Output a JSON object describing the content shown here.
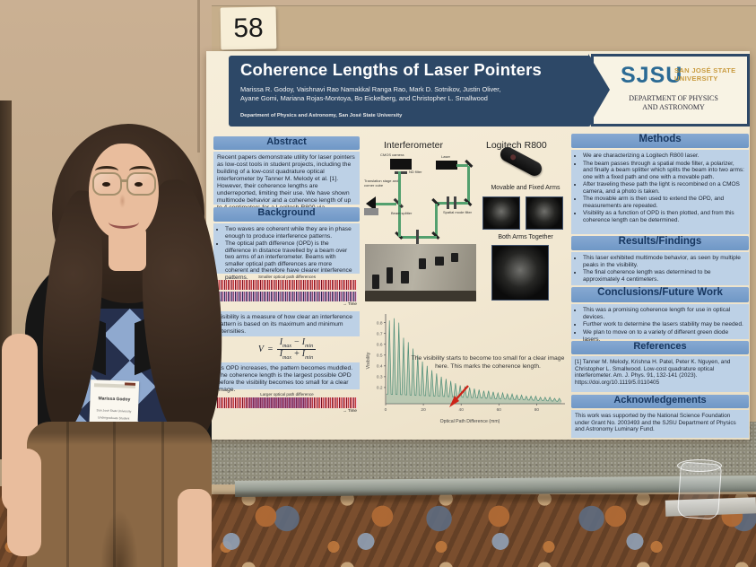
{
  "scene": {
    "poster_number": "58",
    "badge": {
      "name": "Marissa Godoy",
      "org": "San José State University",
      "role": "Undergraduate Student",
      "pronoun_label": "my pronouns are",
      "pronoun1": "she • her",
      "pronoun2": "they • them"
    }
  },
  "icons": {
    "time_arrow": "→"
  },
  "colors": {
    "header_navy": "#2d4867",
    "section_header_blue": "#7fa3cf",
    "section_body_blue": "#bdd1e6",
    "sjsu_blue": "#2b6a94",
    "sjsu_gold": "#c99b3f",
    "chart_teal": "#4e8d77",
    "arrow_red": "#cc2418",
    "lanyard_green": "#5fbf63",
    "poster_cream": "#f2e8d2"
  },
  "poster": {
    "title": "Coherence Lengths of Laser Pointers",
    "authors_line1": "Marissa R. Godoy, Vaishnavi Rao Namakkal Ranga Rao, Mark D. Sotnikov, Justin Oliver,",
    "authors_line2": "Ayane Gomi, Mariana Rojas-Montoya, Bo Eickelberg, and Christopher L. Smallwood",
    "affiliation": "Department of Physics and Astronomy, San José State University",
    "logo": {
      "acronym": "SJSU",
      "university1": "SAN JOSÉ STATE",
      "university2": "UNIVERSITY",
      "department1": "DEPARTMENT OF PHYSICS",
      "department2": "AND ASTRONOMY"
    },
    "formula": {
      "lhs": "V",
      "eq": "=",
      "num_i1": "I",
      "num_s1": "max",
      "num_op": "−",
      "num_i2": "I",
      "num_s2": "min",
      "den_i1": "I",
      "den_s1": "max",
      "den_op": "+",
      "den_i2": "I",
      "den_s2": "min"
    },
    "middle": {
      "interferometer_title": "Interferometer",
      "interferometer_labels": [
        "CMOS camera",
        "ND filter",
        "Laser",
        "Translation stage and corner cube",
        "Beam splitter",
        "Polarizer",
        "Spatial mode filter"
      ],
      "laser_title": "Logitech R800",
      "arms_label": "Movable and Fixed Arms",
      "both_label": "Both Arms Together",
      "annotation": "The visibility starts to become too small for a clear image here. This marks the coherence length."
    },
    "sections": {
      "abstract": {
        "heading": "Abstract",
        "body": "Recent papers demonstrate utility for laser pointers as low-cost tools in student projects, including the building of a low-cost quadrature optical interferometer by Tanner M. Melody et al. [1]. However, their coherence lengths are underreported, limiting their use. We have shown multimode behavior and a coherence length of up to 4 centimeters for a Logitech R800 via interferometry."
      },
      "background": {
        "heading": "Background",
        "bullets": [
          "Two waves are coherent while they are in phase enough to produce interference patterns.",
          "The optical path difference (OPD) is the difference in distance travelled by a beam over two arms of an interferometer. Beams with smaller optical path differences are more coherent and therefore have clearer interference patterns."
        ],
        "figure1_caption": "Smaller optical path differences",
        "figure2_caption": "Larger optical path difference",
        "time_label": "Time",
        "visibility_note": "Visibility is a measure of how clear an interference pattern is based on its maximum and minimum intensities.",
        "opd_note": "As OPD increases, the pattern becomes muddled. The coherence length is the largest possible OPD before the visibility becomes too small for a clear image."
      },
      "methods": {
        "heading": "Methods",
        "bullets": [
          "We are characterizing a Logitech R800 laser.",
          "The beam passes through a spatial mode filter, a polarizer, and finally a beam splitter which splits the beam into two arms: one with a fixed path and one with a movable path.",
          "After traveling these path the light is recombined on a CMOS camera, and a photo is taken.",
          "The movable arm is then used to extend the OPD, and measurements are repeated.",
          "Visibility as a function of OPD is then plotted, and from this coherence length can be determined."
        ]
      },
      "results": {
        "heading": "Results/Findings",
        "bullets": [
          "This laser exhibited multimode behavior, as seen by multiple peaks in the visibility.",
          "The final coherence length was determined to be approximately 4 centimeters."
        ]
      },
      "conclusions": {
        "heading": "Conclusions/Future Work",
        "bullets": [
          "This was a promising coherence length for use in optical devices.",
          "Further work to determine the lasers stability may be needed.",
          "We plan to move on to a variety of different green diode lasers."
        ]
      },
      "references": {
        "heading": "References",
        "body": "[1] Tanner M. Melody, Krishna H. Patel, Peter K. Nguyen, and Christopher L. Smallwood. Low-cost quadrature optical interferometer. Am. J. Phys. 91, 132-141 (2023). https://doi.org/10.1119/5.0110405"
      },
      "acknowledgements": {
        "heading": "Acknowledgements",
        "body": "This work was supported by the National Science Foundation under Grant No. 2003493 and the SJSU Department of Physics and Astronomy Luminary Fund."
      }
    }
  },
  "chart_data": {
    "type": "line",
    "title": "",
    "xlabel": "Optical Path Difference (mm)",
    "ylabel": "Visibility",
    "xlim": [
      0,
      95
    ],
    "ylim": [
      0.05,
      0.88
    ],
    "xticks": [
      0,
      20,
      40,
      60,
      80
    ],
    "yticks": [
      0.2,
      0.3,
      0.4,
      0.5,
      0.6,
      0.7,
      0.8
    ],
    "baseline_start": 0.14,
    "baseline_end": 0.07,
    "legend": null,
    "grid": false,
    "peaks": {
      "x": [
        2,
        4.5,
        7,
        9.5,
        12,
        14.5,
        17,
        19.5,
        22,
        24.5,
        27,
        29.5,
        32,
        34.5,
        37,
        39.5,
        42,
        44.5,
        47,
        49.5,
        52,
        54.5,
        57,
        59.5,
        62,
        64.5,
        67,
        69.5,
        72,
        74.5,
        77,
        79.5,
        82,
        84.5,
        87,
        89.5,
        92
      ],
      "visibility": [
        0.82,
        0.84,
        0.8,
        0.66,
        0.62,
        0.56,
        0.5,
        0.44,
        0.4,
        0.36,
        0.33,
        0.3,
        0.28,
        0.26,
        0.24,
        0.22,
        0.21,
        0.2,
        0.19,
        0.18,
        0.17,
        0.17,
        0.16,
        0.15,
        0.15,
        0.14,
        0.14,
        0.13,
        0.13,
        0.12,
        0.12,
        0.12,
        0.11,
        0.11,
        0.11,
        0.1,
        0.1
      ]
    },
    "annotation": "The visibility starts to become too small for a clear image here. This marks the coherence length.",
    "annotation_arrow_x": 40
  }
}
